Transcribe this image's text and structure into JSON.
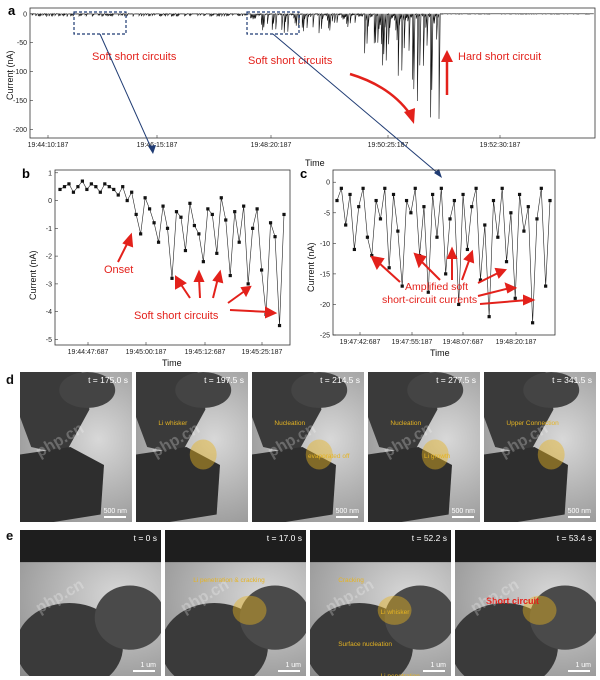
{
  "panels": {
    "a": {
      "label": "a",
      "ylabel": "Current (nA)",
      "xlabel": "Time",
      "yticks": [
        "0",
        "-50",
        "-100",
        "-150",
        "-200"
      ],
      "xticks": [
        "19:44:10:187",
        "19:46:15:187",
        "19:48:20:187",
        "19:50:25:187",
        "19:52:30:187"
      ],
      "annotations": {
        "soft1": "Soft short circuits",
        "soft2": "Soft short circuits",
        "hard": "Hard short circuit"
      }
    },
    "b": {
      "label": "b",
      "ylabel": "Current (nA)",
      "xlabel": "Time",
      "yticks": [
        "1",
        "0",
        "-1",
        "-2",
        "-3",
        "-4",
        "-5"
      ],
      "xticks": [
        "19:44:47:687",
        "19:45:00:187",
        "19:45:12:687",
        "19:45:25:187"
      ],
      "annotations": {
        "onset": "Onset",
        "soft": "Soft short circuits"
      }
    },
    "c": {
      "label": "c",
      "ylabel": "Current (nA)",
      "xlabel": "Time",
      "yticks": [
        "0",
        "-5",
        "-10",
        "-15",
        "-20",
        "-25"
      ],
      "xticks": [
        "19:47:42:687",
        "19:47:55:187",
        "19:48:07:687",
        "19:48:20:187"
      ],
      "annotations": {
        "line1": "Amplified soft",
        "line2": "short-circuit currents"
      }
    },
    "d": {
      "label": "d",
      "frames": [
        {
          "time": "t = 175.0 s",
          "labels": [],
          "scale": "500 nm"
        },
        {
          "time": "t = 197.5 s",
          "labels": [
            "Li whisker"
          ],
          "scale": ""
        },
        {
          "time": "t = 214.5 s",
          "labels": [
            "Nucleation",
            "evaporated off"
          ],
          "scale": "500 nm"
        },
        {
          "time": "t = 277.5 s",
          "labels": [
            "Nucleation",
            "Li growth"
          ],
          "scale": "500 nm"
        },
        {
          "time": "t = 341.5 s",
          "labels": [
            "Upper Connection"
          ],
          "scale": "500 nm"
        }
      ]
    },
    "e": {
      "label": "e",
      "frames": [
        {
          "time": "t = 0 s",
          "labels": [],
          "scale": "1 um"
        },
        {
          "time": "t = 17.0 s",
          "labels": [
            "Li penetration & cracking"
          ],
          "scale": "1 um"
        },
        {
          "time": "t = 52.2 s",
          "labels": [
            "Cracking",
            "Li whisker",
            "Surface nucleation",
            "Li penetration"
          ],
          "scale": "1 um"
        },
        {
          "time": "t = 53.4 s",
          "labels": [
            "Short circuit"
          ],
          "scale": "1 um"
        }
      ]
    }
  },
  "watermark": "php.cn",
  "colors": {
    "accent_red": "#e3211b",
    "highlight_yellow": "#e6b422",
    "box_blue": "#1f3b73"
  },
  "chart_data": [
    {
      "type": "line",
      "title": "",
      "xlabel": "Time",
      "ylabel": "Current (nA)",
      "ylim": [
        -215,
        10
      ],
      "xlim": [
        "19:44:10:187",
        "19:53:30:187"
      ],
      "note_points": [
        {
          "t": "19:44:10:187",
          "y": 0
        },
        {
          "t": "19:46:15:187",
          "y": -1
        },
        {
          "t": "19:48:20:187",
          "y": -5
        },
        {
          "t": "19:49:00:187",
          "y": -40
        },
        {
          "t": "19:49:40:187",
          "y": -80
        },
        {
          "t": "19:50:25:187",
          "y": -210
        },
        {
          "t": "19:50:50:187",
          "y": 0
        },
        {
          "t": "19:53:30:187",
          "y": 0
        }
      ]
    },
    {
      "type": "line",
      "xlabel": "Time",
      "ylabel": "Current (nA)",
      "ylim": [
        -5.2,
        1.1
      ],
      "values": [
        0.4,
        0.5,
        0.6,
        0.3,
        0.5,
        0.7,
        0.4,
        0.6,
        0.5,
        0.3,
        0.6,
        0.5,
        0.4,
        0.2,
        0.5,
        0.0,
        0.3,
        -0.5,
        -1.2,
        0.1,
        -0.3,
        -0.8,
        -1.5,
        -0.2,
        -1.0,
        -2.8,
        -0.4,
        -0.6,
        -1.8,
        -0.1,
        -0.9,
        -1.2,
        -2.2,
        -0.3,
        -0.5,
        -1.9,
        0.1,
        -0.7,
        -2.7,
        -0.4,
        -1.5,
        -0.2,
        -3.0,
        -1.0,
        -0.3,
        -2.5,
        -4.1,
        -0.8,
        -1.3,
        -4.5,
        -0.5
      ]
    },
    {
      "type": "line",
      "xlabel": "Time",
      "ylabel": "Current (nA)",
      "ylim": [
        -25,
        2
      ],
      "values": [
        -3,
        -1,
        -7,
        -2,
        -11,
        -4,
        -1,
        -9,
        -12,
        -3,
        -6,
        -1,
        -14,
        -2,
        -8,
        -17,
        -3,
        -5,
        -1,
        -12,
        -4,
        -18,
        -2,
        -9,
        -1,
        -15,
        -6,
        -3,
        -20,
        -2,
        -11,
        -4,
        -1,
        -16,
        -7,
        -22,
        -3,
        -9,
        -1,
        -13,
        -5,
        -19,
        -2,
        -8,
        -4,
        -23,
        -6,
        -1,
        -17,
        -3
      ]
    }
  ]
}
